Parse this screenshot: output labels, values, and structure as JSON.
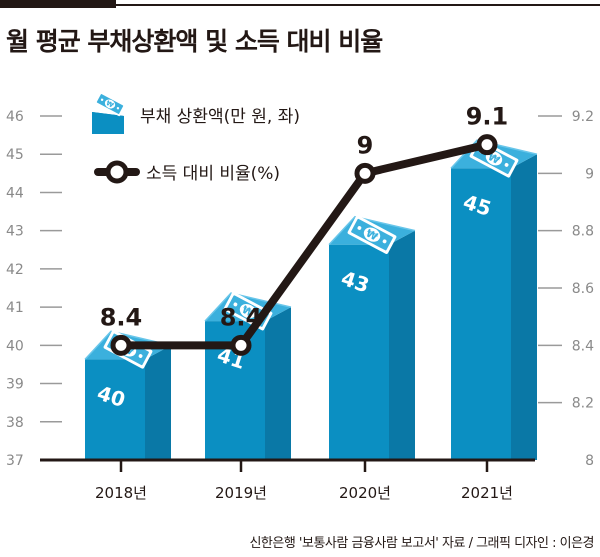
{
  "title": "월 평균 부채상환액 및 소득 대비 비율",
  "source": "신한은행 '보통사람 금융사람 보고서' 자료 / 그래픽 디자인 : 이은경",
  "colors": {
    "bar_front": "#0b8fc2",
    "bar_side": "#0a78a6",
    "bar_top": "#3bb0dd",
    "note": "#ffffff",
    "line": "#231815",
    "axis": "#231815",
    "grid_tick": "#9a9a9a"
  },
  "chart_data": {
    "type": "bar",
    "title": "월 평균 부채상환액 및 소득 대비 비율",
    "categories": [
      "2018년",
      "2019년",
      "2020년",
      "2021년"
    ],
    "series": [
      {
        "name": "부채 상환액(만 원, 좌)",
        "type": "bar",
        "axis": "left",
        "values": [
          40,
          41,
          43,
          45
        ],
        "labels": [
          "40",
          "41",
          "43",
          "45"
        ]
      },
      {
        "name": "소득 대비 비율(%)",
        "type": "line",
        "axis": "right",
        "values": [
          8.4,
          8.4,
          9,
          9.1
        ],
        "labels": [
          "8.4",
          "8.4",
          "9",
          "9.1"
        ]
      }
    ],
    "left_axis": {
      "ylim": [
        37,
        46
      ],
      "ticks": [
        "37",
        "38",
        "39",
        "40",
        "41",
        "42",
        "43",
        "44",
        "45",
        "46"
      ]
    },
    "right_axis": {
      "ylim": [
        8,
        9.2
      ],
      "ticks": [
        "8",
        "8.2",
        "8.4",
        "8.6",
        "8.8",
        "9",
        "9.2"
      ]
    },
    "legend": {
      "placement": "top-left",
      "entries": [
        "부채 상환액(만 원, 좌)",
        "소득 대비 비율(%)"
      ]
    },
    "grid": false
  }
}
